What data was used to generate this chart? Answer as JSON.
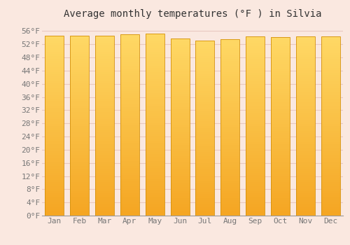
{
  "title": "Average monthly temperatures (°F ) in Silvia",
  "months": [
    "Jan",
    "Feb",
    "Mar",
    "Apr",
    "May",
    "Jun",
    "Jul",
    "Aug",
    "Sep",
    "Oct",
    "Nov",
    "Dec"
  ],
  "values": [
    54.5,
    54.5,
    54.5,
    55.0,
    55.2,
    53.8,
    53.2,
    53.6,
    54.3,
    54.1,
    54.3,
    54.3
  ],
  "bar_color_bottom": "#F5A623",
  "bar_color_top": "#FFD966",
  "background_color": "#FAE8E0",
  "grid_color": "#E8C8C0",
  "ylim": [
    0,
    58
  ],
  "ytick_step": 4,
  "title_fontsize": 10,
  "tick_fontsize": 8,
  "bar_edge_color": "#D4900A",
  "bar_width": 0.75
}
